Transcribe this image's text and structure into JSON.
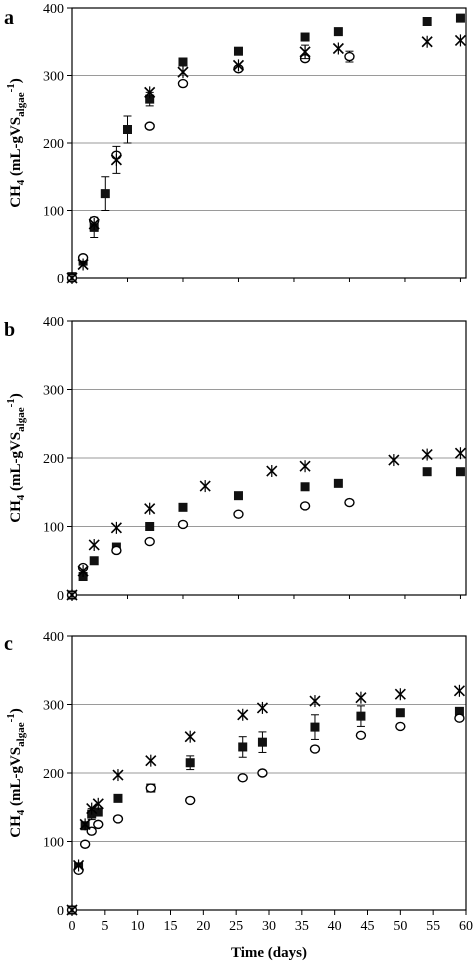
{
  "figure": {
    "x_axis_label": "Time (days)",
    "panel_labels": [
      "a",
      "b",
      "c"
    ]
  },
  "chart_data": [
    {
      "type": "scatter",
      "panel": "a",
      "ylabel": {
        "main": "CH",
        "sub": "4",
        "mid": " (mL-gVS",
        "low": "algae",
        "sup": "-1",
        "end": ")"
      },
      "ylim": [
        0,
        400
      ],
      "yticks": [
        0,
        100,
        200,
        300,
        400
      ],
      "xlim": [
        0,
        35.5
      ],
      "grid": true,
      "series": [
        {
          "marker": "square",
          "points": [
            [
              0,
              2
            ],
            [
              1,
              25
            ],
            [
              2,
              75
            ],
            [
              3,
              125
            ],
            [
              5,
              220
            ],
            [
              7,
              265
            ],
            [
              10,
              320
            ],
            [
              15,
              336
            ],
            [
              21,
              357
            ],
            [
              24,
              365
            ],
            [
              32,
              380
            ],
            [
              35,
              385
            ]
          ],
          "errors": [
            0,
            0,
            15,
            25,
            20,
            10,
            0,
            0,
            0,
            0,
            0,
            5
          ]
        },
        {
          "marker": "circle",
          "points": [
            [
              0,
              0
            ],
            [
              1,
              30
            ],
            [
              2,
              85
            ],
            [
              4,
              182
            ],
            [
              7,
              225
            ],
            [
              10,
              288
            ],
            [
              15,
              310
            ],
            [
              21,
              325
            ],
            [
              25,
              328
            ]
          ],
          "errors": [
            0,
            0,
            0,
            0,
            0,
            0,
            0,
            0,
            8
          ]
        },
        {
          "marker": "asterisk",
          "points": [
            [
              0,
              0
            ],
            [
              1,
              20
            ],
            [
              2,
              80
            ],
            [
              4,
              175
            ],
            [
              7,
              275
            ],
            [
              10,
              305
            ],
            [
              15,
              315
            ],
            [
              21,
              335
            ],
            [
              24,
              340
            ],
            [
              32,
              350
            ],
            [
              35,
              352
            ]
          ],
          "errors": [
            0,
            0,
            0,
            20,
            0,
            0,
            0,
            10,
            0,
            0,
            0
          ]
        }
      ]
    },
    {
      "type": "scatter",
      "panel": "b",
      "ylabel": {
        "main": "CH",
        "sub": "4",
        "mid": " (mL-gVS",
        "low": "algae",
        "sup": "-1",
        "end": ")"
      },
      "ylim": [
        0,
        400
      ],
      "yticks": [
        0,
        100,
        200,
        300,
        400
      ],
      "xlim": [
        0,
        35.5
      ],
      "grid": true,
      "series": [
        {
          "marker": "square",
          "points": [
            [
              0,
              0
            ],
            [
              1,
              27
            ],
            [
              2,
              50
            ],
            [
              4,
              70
            ],
            [
              7,
              100
            ],
            [
              10,
              128
            ],
            [
              15,
              145
            ],
            [
              21,
              158
            ],
            [
              24,
              163
            ],
            [
              32,
              180
            ],
            [
              35,
              180
            ]
          ],
          "errors": []
        },
        {
          "marker": "circle",
          "points": [
            [
              0,
              0
            ],
            [
              1,
              40
            ],
            [
              4,
              65
            ],
            [
              7,
              78
            ],
            [
              10,
              103
            ],
            [
              15,
              118
            ],
            [
              21,
              130
            ],
            [
              25,
              135
            ]
          ],
          "errors": []
        },
        {
          "marker": "asterisk",
          "points": [
            [
              0,
              0
            ],
            [
              1,
              35
            ],
            [
              2,
              73
            ],
            [
              4,
              98
            ],
            [
              7,
              126
            ],
            [
              12,
              159
            ],
            [
              18,
              181
            ],
            [
              21,
              188
            ],
            [
              29,
              197
            ],
            [
              32,
              205
            ],
            [
              35,
              207
            ]
          ],
          "errors": []
        }
      ]
    },
    {
      "type": "scatter",
      "panel": "c",
      "ylabel": {
        "main": "CH",
        "sub": "4",
        "mid": " (mL-gVS",
        "low": "algae",
        "sup": "-1",
        "end": ")"
      },
      "ylim": [
        0,
        400
      ],
      "yticks": [
        0,
        100,
        200,
        300,
        400
      ],
      "xlim": [
        0,
        60
      ],
      "xticks": [
        0,
        5,
        10,
        15,
        20,
        25,
        30,
        35,
        40,
        45,
        50,
        55,
        60
      ],
      "xlabel": "Time (days)",
      "grid": true,
      "series": [
        {
          "marker": "square",
          "points": [
            [
              0,
              0
            ],
            [
              1,
              63
            ],
            [
              2,
              123
            ],
            [
              3,
              140
            ],
            [
              4,
              143
            ],
            [
              7,
              163
            ],
            [
              12,
              178
            ],
            [
              18,
              215
            ],
            [
              26,
              238
            ],
            [
              29,
              245
            ],
            [
              37,
              267
            ],
            [
              44,
              283
            ],
            [
              50,
              288
            ],
            [
              59,
              290
            ]
          ],
          "errors": [
            0,
            0,
            0,
            8,
            0,
            0,
            0,
            10,
            15,
            15,
            18,
            15,
            0,
            0
          ]
        },
        {
          "marker": "circle",
          "points": [
            [
              0,
              0
            ],
            [
              1,
              58
            ],
            [
              2,
              96
            ],
            [
              3,
              115
            ],
            [
              4,
              125
            ],
            [
              7,
              133
            ],
            [
              12,
              178
            ],
            [
              18,
              160
            ],
            [
              26,
              193
            ],
            [
              29,
              200
            ],
            [
              37,
              235
            ],
            [
              44,
              255
            ],
            [
              50,
              268
            ],
            [
              59,
              280
            ]
          ],
          "errors": []
        },
        {
          "marker": "asterisk",
          "points": [
            [
              0,
              0
            ],
            [
              1,
              65
            ],
            [
              2,
              125
            ],
            [
              3,
              148
            ],
            [
              4,
              155
            ],
            [
              7,
              197
            ],
            [
              12,
              218
            ],
            [
              18,
              253
            ],
            [
              26,
              285
            ],
            [
              29,
              295
            ],
            [
              37,
              305
            ],
            [
              44,
              310
            ],
            [
              50,
              315
            ],
            [
              59,
              320
            ]
          ],
          "errors": []
        }
      ]
    }
  ]
}
